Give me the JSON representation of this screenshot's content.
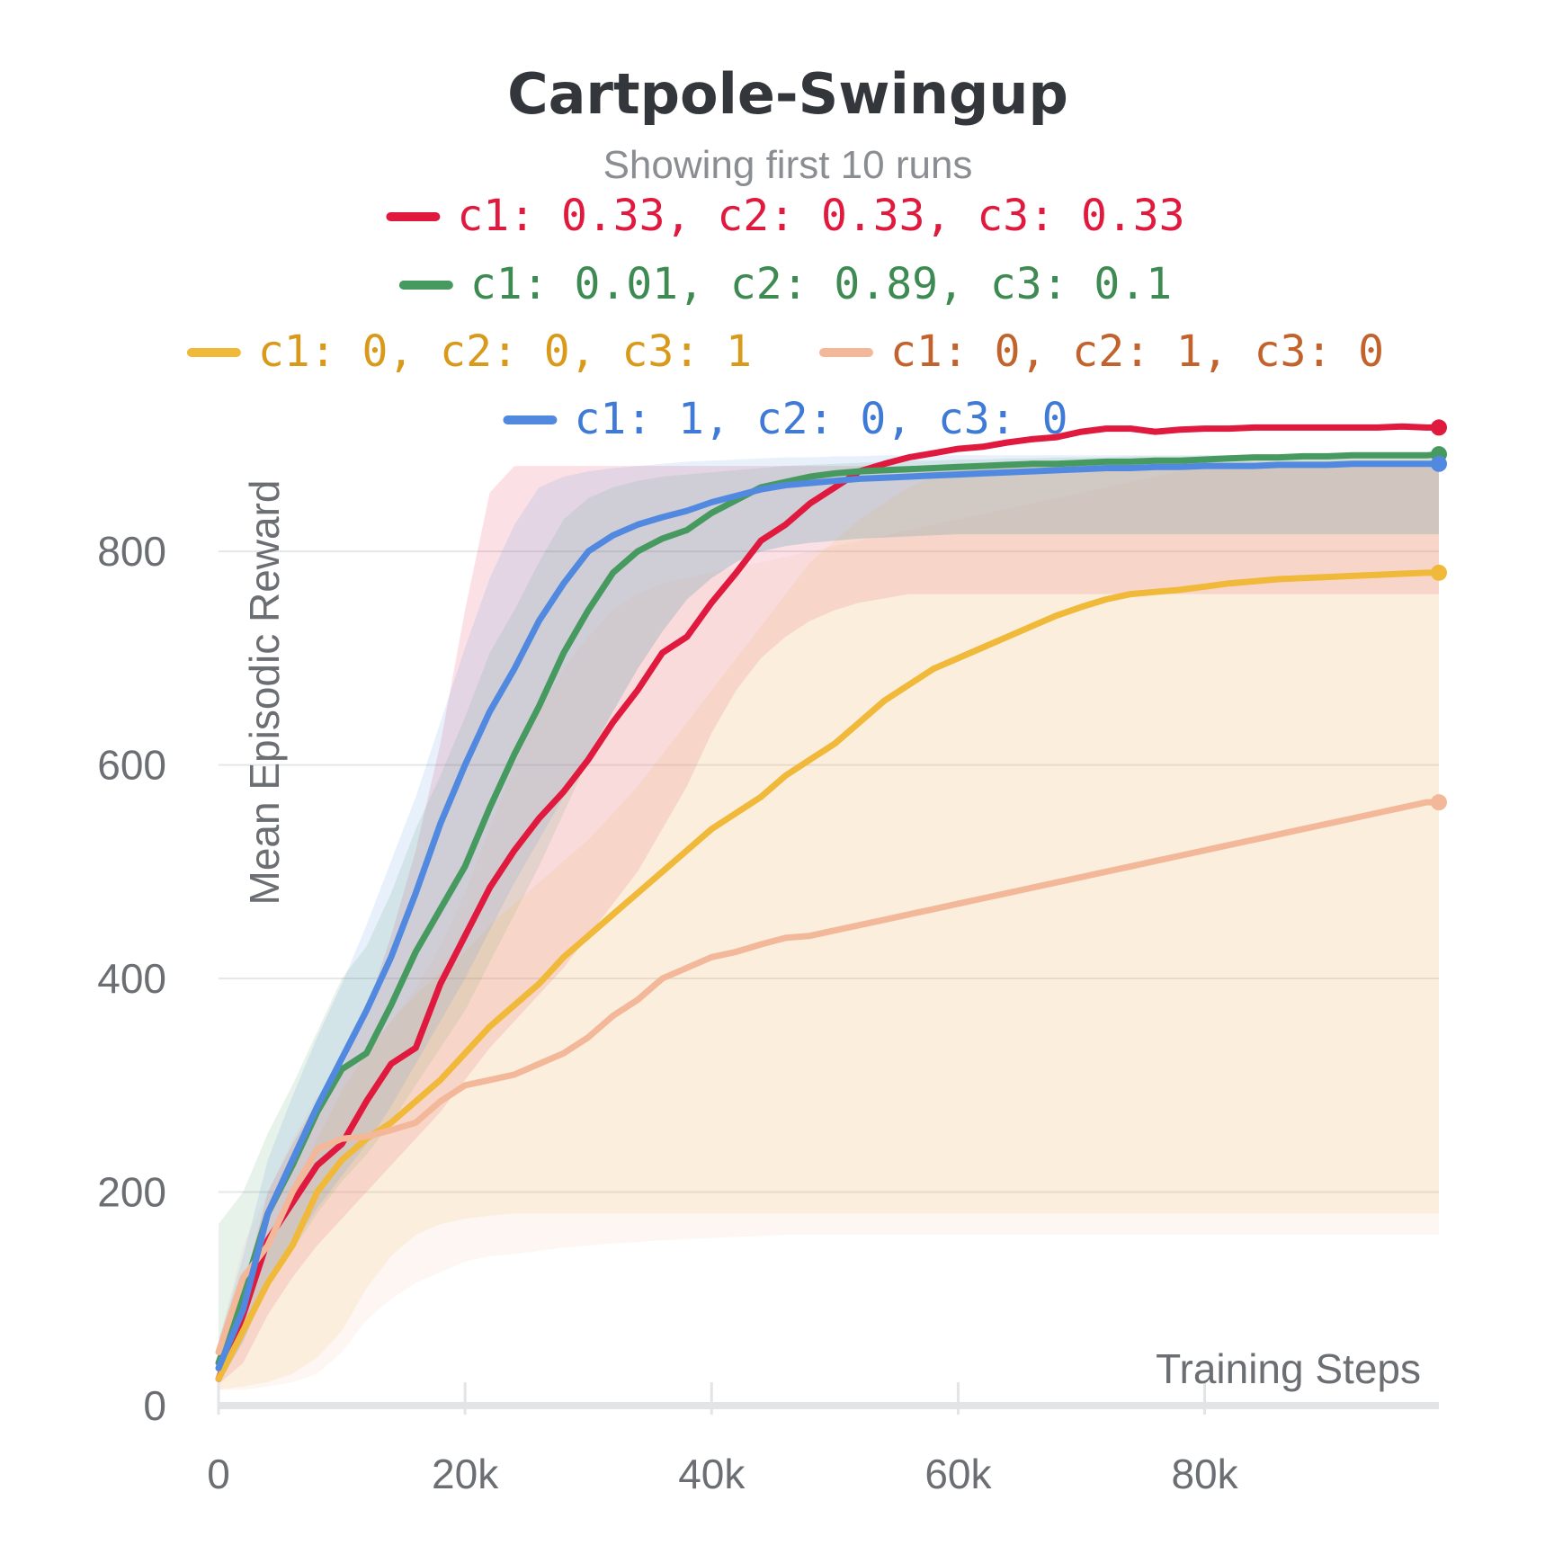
{
  "chart_data": {
    "type": "line",
    "title": "Cartpole-Swingup",
    "subtitle": "Showing first 10 runs",
    "xlabel": "Training Steps",
    "ylabel": "Mean Episodic Reward",
    "xlim": [
      0,
      99000
    ],
    "ylim": [
      0,
      870
    ],
    "xticks": [
      0,
      20000,
      40000,
      60000,
      80000
    ],
    "xtick_labels": [
      "0",
      "20k",
      "40k",
      "60k",
      "80k"
    ],
    "yticks": [
      0,
      200,
      400,
      600,
      800
    ],
    "ytick_labels": [
      "0",
      "200",
      "400",
      "600",
      "800"
    ],
    "grid": true,
    "legend_position": "top-center",
    "x": [
      0,
      2,
      4,
      6,
      8,
      10,
      12,
      14,
      16,
      18,
      20,
      22,
      24,
      26,
      28,
      30,
      32,
      34,
      36,
      38,
      40,
      42,
      44,
      46,
      48,
      50,
      52,
      54,
      56,
      58,
      60,
      62,
      64,
      66,
      68,
      70,
      72,
      74,
      76,
      78,
      80,
      82,
      84,
      86,
      88,
      90,
      92,
      94,
      96,
      98,
      99
    ],
    "x_unit": 1000,
    "series": [
      {
        "name": "c1: 0.33, c2: 0.33, c3: 0.33",
        "color": "#e0193e",
        "text_color": "#e0193e",
        "values": [
          25,
          85,
          155,
          190,
          225,
          245,
          285,
          320,
          335,
          395,
          440,
          485,
          520,
          550,
          575,
          605,
          640,
          670,
          705,
          720,
          752,
          780,
          810,
          825,
          845,
          860,
          875,
          882,
          888,
          892,
          896,
          898,
          902,
          905,
          907,
          912,
          915,
          915,
          912,
          914,
          915,
          915,
          916,
          916,
          916,
          916,
          916,
          916,
          917,
          916,
          916
        ],
        "band": [
          [
            20,
            40,
            85,
            120,
            150,
            175,
            200,
            225,
            250,
            275,
            305,
            335,
            360,
            385,
            410,
            440,
            470,
            500,
            540,
            580,
            630,
            670,
            700,
            720,
            735,
            745,
            752,
            756,
            760,
            760,
            760,
            760,
            760,
            760,
            760,
            760,
            760,
            760,
            760,
            760,
            760,
            760,
            760,
            760,
            760,
            760,
            760,
            760,
            760,
            760,
            760
          ],
          [
            40,
            110,
            200,
            245,
            285,
            315,
            370,
            440,
            520,
            620,
            745,
            855,
            880,
            880,
            880,
            880,
            880,
            880,
            880,
            880,
            880,
            880,
            880,
            880,
            880,
            880,
            880,
            880,
            880,
            880,
            880,
            880,
            880,
            880,
            880,
            880,
            880,
            880,
            880,
            880,
            880,
            880,
            880,
            880,
            880,
            880,
            880,
            880,
            880,
            880,
            880
          ]
        ]
      },
      {
        "name": "c1: 0.01, c2: 0.89, c3: 0.1",
        "color": "#479a5f",
        "text_color": "#3d8b52",
        "values": [
          40,
          105,
          180,
          225,
          275,
          315,
          330,
          375,
          425,
          465,
          505,
          560,
          610,
          655,
          705,
          745,
          780,
          800,
          812,
          820,
          836,
          848,
          860,
          865,
          870,
          873,
          875,
          876,
          877,
          878,
          879,
          880,
          881,
          882,
          882,
          883,
          884,
          884,
          885,
          885,
          886,
          887,
          888,
          888,
          889,
          889,
          890,
          890,
          890,
          890,
          891
        ],
        "band": [
          [
            20,
            60,
            110,
            145,
            180,
            210,
            235,
            265,
            300,
            335,
            370,
            415,
            460,
            505,
            555,
            605,
            650,
            690,
            725,
            755,
            775,
            790,
            800,
            805,
            808,
            810,
            812,
            813,
            814,
            815,
            816,
            816,
            816,
            816,
            816,
            816,
            816,
            816,
            816,
            816,
            816,
            816,
            816,
            816,
            816,
            816,
            816,
            816,
            816,
            816,
            816
          ],
          [
            170,
            200,
            255,
            300,
            350,
            400,
            430,
            480,
            540,
            590,
            645,
            705,
            745,
            790,
            830,
            850,
            860,
            866,
            870,
            872,
            874,
            876,
            878,
            880,
            881,
            882,
            883,
            884,
            885,
            885,
            886,
            886,
            887,
            887,
            888,
            888,
            888,
            889,
            889,
            889,
            890,
            890,
            890,
            890,
            890,
            890,
            890,
            890,
            890,
            890,
            890
          ]
        ]
      },
      {
        "name": "c1: 0, c2: 0, c3: 1",
        "color": "#f0b93a",
        "text_color": "#d99a1c",
        "values": [
          25,
          70,
          115,
          150,
          200,
          230,
          250,
          265,
          285,
          305,
          330,
          355,
          375,
          395,
          420,
          440,
          460,
          480,
          500,
          520,
          540,
          555,
          570,
          590,
          605,
          620,
          640,
          660,
          675,
          690,
          700,
          710,
          720,
          730,
          740,
          748,
          755,
          760,
          762,
          764,
          767,
          770,
          772,
          774,
          775,
          776,
          777,
          778,
          779,
          780,
          780
        ],
        "band": [
          [
            15,
            18,
            22,
            30,
            45,
            70,
            110,
            140,
            160,
            170,
            175,
            178,
            180,
            180,
            180,
            180,
            180,
            180,
            180,
            180,
            180,
            180,
            180,
            180,
            180,
            180,
            180,
            180,
            180,
            180,
            180,
            180,
            180,
            180,
            180,
            180,
            180,
            180,
            180,
            180,
            180,
            180,
            180,
            180,
            180,
            180,
            180,
            180,
            180,
            180,
            180
          ],
          [
            40,
            90,
            150,
            200,
            250,
            295,
            330,
            360,
            385,
            405,
            425,
            450,
            470,
            490,
            510,
            530,
            555,
            580,
            610,
            640,
            670,
            700,
            730,
            760,
            790,
            810,
            830,
            845,
            860,
            870,
            875,
            878,
            880,
            882,
            883,
            884,
            885,
            886,
            886,
            887,
            887,
            887,
            888,
            888,
            888,
            888,
            888,
            888,
            888,
            888,
            888
          ]
        ]
      },
      {
        "name": "c1: 0, c2: 1, c3: 0",
        "color": "#f3b89a",
        "text_color": "#c2632d",
        "values": [
          50,
          120,
          150,
          200,
          240,
          250,
          252,
          258,
          265,
          285,
          300,
          305,
          310,
          320,
          330,
          345,
          365,
          380,
          400,
          410,
          420,
          425,
          432,
          438,
          440,
          445,
          450,
          455,
          460,
          465,
          470,
          475,
          480,
          485,
          490,
          495,
          500,
          505,
          510,
          515,
          520,
          525,
          530,
          535,
          540,
          545,
          550,
          555,
          560,
          565,
          565
        ],
        "band": [
          [
            15,
            15,
            18,
            22,
            30,
            50,
            80,
            100,
            115,
            125,
            135,
            140,
            142,
            145,
            148,
            150,
            152,
            153,
            155,
            156,
            157,
            158,
            159,
            160,
            160,
            160,
            160,
            160,
            160,
            160,
            160,
            160,
            160,
            160,
            160,
            160,
            160,
            160,
            160,
            160,
            160,
            160,
            160,
            160,
            160,
            160,
            160,
            160,
            160,
            160,
            160
          ],
          [
            60,
            150,
            200,
            250,
            290,
            310,
            330,
            360,
            390,
            430,
            480,
            540,
            600,
            650,
            690,
            720,
            745,
            760,
            770,
            775,
            780,
            785,
            790,
            795,
            800,
            805,
            810,
            815,
            820,
            825,
            830,
            835,
            840,
            845,
            850,
            855,
            860,
            865,
            870,
            875,
            880,
            880,
            880,
            880,
            880,
            880,
            880,
            880,
            880,
            880,
            880
          ]
        ]
      },
      {
        "name": "c1: 1, c2: 0, c3: 0",
        "color": "#5189e0",
        "text_color": "#3f7ad6",
        "values": [
          35,
          90,
          180,
          230,
          280,
          325,
          370,
          420,
          480,
          545,
          600,
          650,
          690,
          735,
          770,
          800,
          815,
          825,
          832,
          838,
          846,
          852,
          858,
          862,
          864,
          866,
          868,
          869,
          870,
          871,
          872,
          873,
          874,
          875,
          876,
          877,
          878,
          878,
          879,
          879,
          880,
          880,
          880,
          881,
          881,
          881,
          882,
          882,
          882,
          882,
          882
        ],
        "band": [
          [
            20,
            60,
            115,
            150,
            185,
            215,
            245,
            280,
            320,
            360,
            400,
            445,
            490,
            530,
            570,
            610,
            650,
            690,
            725,
            755,
            775,
            790,
            800,
            805,
            808,
            810,
            812,
            813,
            814,
            815,
            816,
            816,
            816,
            816,
            816,
            816,
            816,
            816,
            816,
            816,
            816,
            816,
            816,
            816,
            816,
            816,
            816,
            816,
            816,
            816,
            816
          ],
          [
            60,
            140,
            230,
            290,
            345,
            395,
            450,
            510,
            570,
            640,
            710,
            775,
            825,
            860,
            870,
            875,
            878,
            880,
            882,
            884,
            885,
            886,
            887,
            888,
            888,
            889,
            889,
            890,
            890,
            890,
            890,
            890,
            890,
            890,
            890,
            890,
            890,
            890,
            890,
            890,
            890,
            890,
            890,
            890,
            890,
            890,
            890,
            890,
            890,
            890,
            890
          ]
        ]
      }
    ]
  }
}
